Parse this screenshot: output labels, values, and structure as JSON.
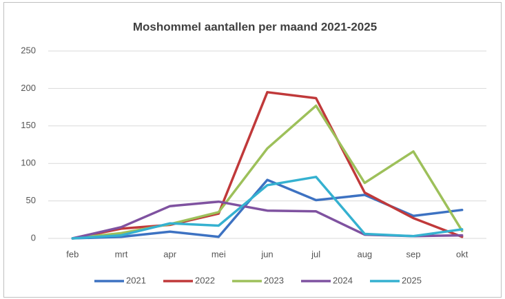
{
  "chart_data": {
    "type": "line",
    "title": "Moshommel aantallen per maand 2021-2025",
    "categories": [
      "feb",
      "mrt",
      "apr",
      "mei",
      "jun",
      "jul",
      "aug",
      "sep",
      "okt"
    ],
    "series": [
      {
        "name": "2021",
        "color": "#3d72c2",
        "values": [
          0,
          2,
          9,
          2,
          78,
          51,
          58,
          30,
          38
        ]
      },
      {
        "name": "2022",
        "color": "#c0393a",
        "values": [
          0,
          13,
          18,
          33,
          195,
          187,
          61,
          27,
          2
        ]
      },
      {
        "name": "2023",
        "color": "#9dc05a",
        "values": [
          0,
          7,
          19,
          35,
          120,
          177,
          74,
          116,
          10
        ]
      },
      {
        "name": "2024",
        "color": "#7f52a0",
        "values": [
          0,
          15,
          43,
          49,
          37,
          36,
          5,
          3,
          4
        ]
      },
      {
        "name": "2025",
        "color": "#35b1d0",
        "values": [
          0,
          4,
          20,
          17,
          71,
          82,
          6,
          3,
          12
        ]
      }
    ],
    "ylim": [
      0,
      250
    ],
    "yticks": [
      0,
      50,
      100,
      150,
      200,
      250
    ],
    "grid": true,
    "legend": "bottom"
  }
}
